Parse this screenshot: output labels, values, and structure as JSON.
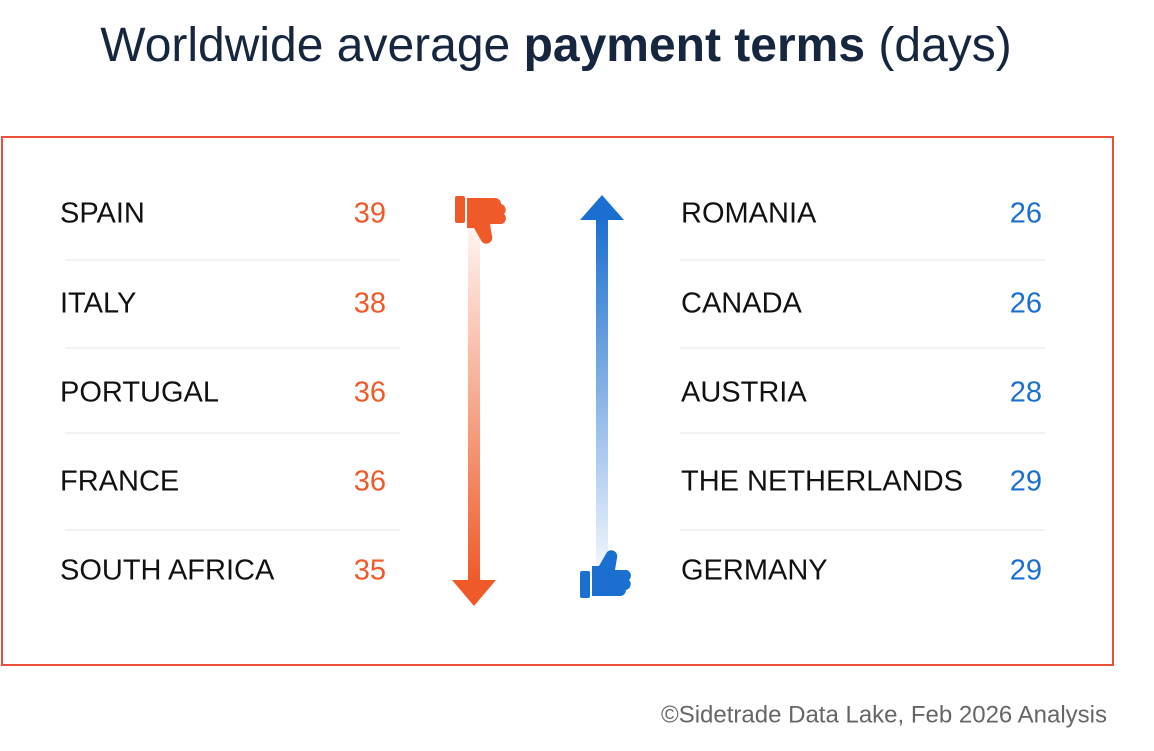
{
  "title": {
    "prefix": "Worldwide average ",
    "emphasis": "payment terms",
    "suffix": " (days)"
  },
  "left": [
    {
      "country": "SPAIN",
      "days": 39
    },
    {
      "country": "ITALY",
      "days": 38
    },
    {
      "country": "PORTUGAL",
      "days": 36
    },
    {
      "country": "FRANCE",
      "days": 36
    },
    {
      "country": "SOUTH AFRICA",
      "days": 35
    }
  ],
  "right": [
    {
      "country": "ROMANIA",
      "days": 26
    },
    {
      "country": "CANADA",
      "days": 26
    },
    {
      "country": "AUSTRIA",
      "days": 28
    },
    {
      "country": "THE NETHERLANDS",
      "days": 29
    },
    {
      "country": "GERMANY",
      "days": 29
    }
  ],
  "footer": "©Sidetrade Data Lake, Feb 2026 Analysis"
}
